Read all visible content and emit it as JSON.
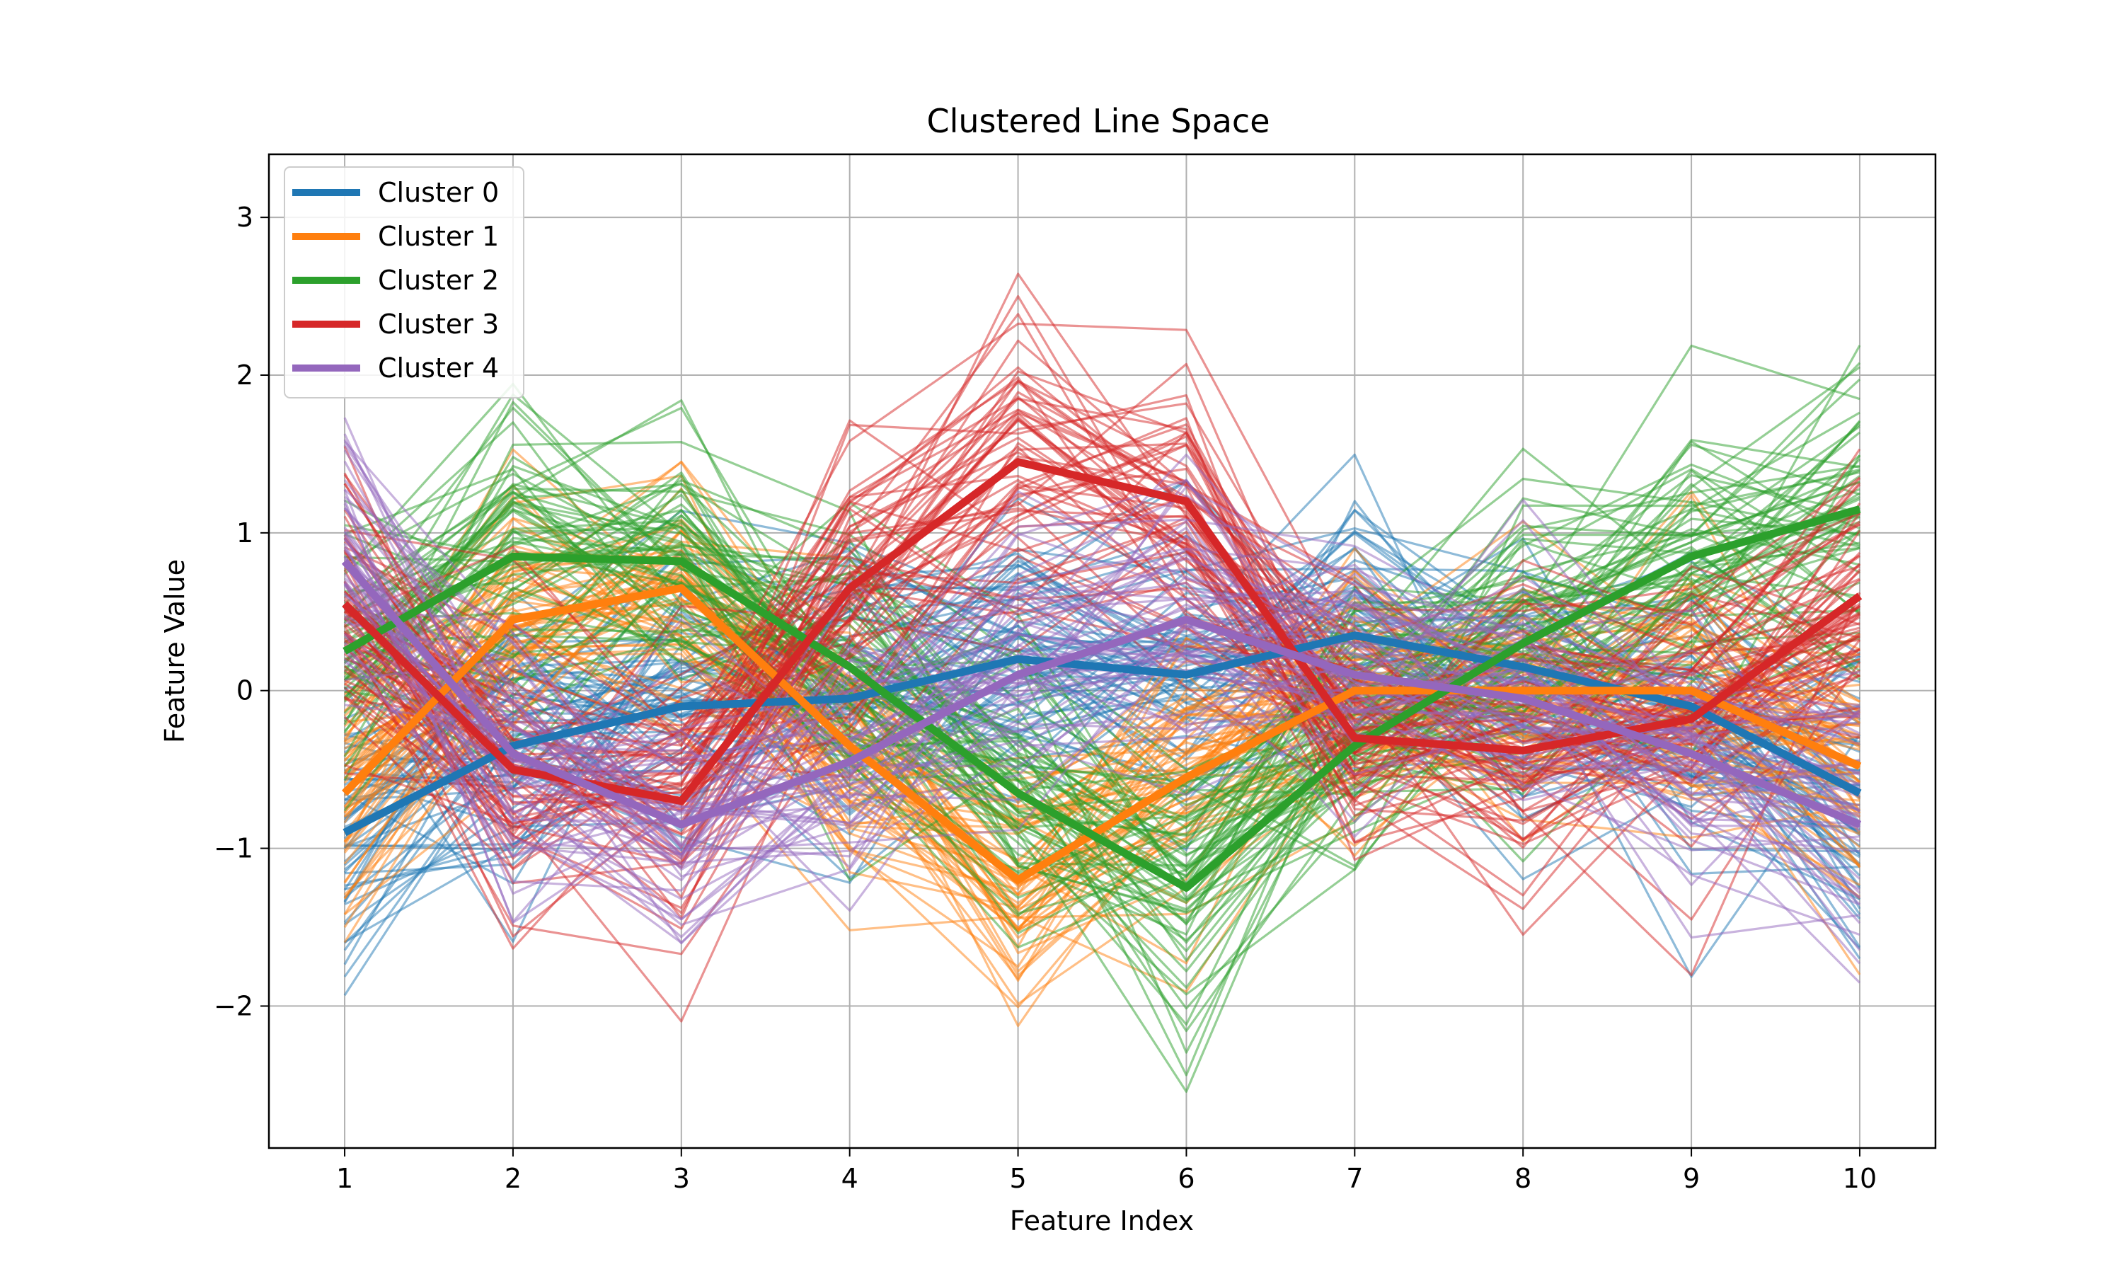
{
  "chart_data": {
    "type": "line",
    "title": "Clustered Line Space",
    "xlabel": "Feature Index",
    "ylabel": "Feature Value",
    "x": [
      1,
      2,
      3,
      4,
      5,
      6,
      7,
      8,
      9,
      10
    ],
    "xlim": [
      0.55,
      10.45
    ],
    "ylim": [
      -2.9,
      3.4
    ],
    "xticks": [
      "1",
      "2",
      "3",
      "4",
      "5",
      "6",
      "7",
      "8",
      "9",
      "10"
    ],
    "yticks": [
      {
        "value": 3,
        "label": "3"
      },
      {
        "value": 2,
        "label": "2"
      },
      {
        "value": 1,
        "label": "1"
      },
      {
        "value": 0,
        "label": "0"
      },
      {
        "value": -1,
        "label": "−1"
      },
      {
        "value": -2,
        "label": "−2"
      }
    ],
    "grid": true,
    "legend": "upper-left",
    "series": [
      {
        "name": "Cluster 0",
        "color": "#1f77b4",
        "centroid": [
          -0.9,
          -0.35,
          -0.1,
          -0.05,
          0.2,
          0.1,
          0.35,
          0.15,
          -0.1,
          -0.65
        ],
        "spread": 0.45,
        "samples": 60
      },
      {
        "name": "Cluster 1",
        "color": "#ff7f0e",
        "centroid": [
          -0.65,
          0.45,
          0.65,
          -0.35,
          -1.2,
          -0.55,
          0.0,
          0.0,
          0.0,
          -0.48
        ],
        "spread": 0.42,
        "samples": 60
      },
      {
        "name": "Cluster 2",
        "color": "#2ca02c",
        "centroid": [
          0.25,
          0.85,
          0.82,
          0.15,
          -0.65,
          -1.25,
          -0.35,
          0.3,
          0.85,
          1.15
        ],
        "spread": 0.45,
        "samples": 60
      },
      {
        "name": "Cluster 3",
        "color": "#d62728",
        "centroid": [
          0.55,
          -0.5,
          -0.7,
          0.65,
          1.45,
          1.2,
          -0.3,
          -0.38,
          -0.18,
          0.6
        ],
        "spread": 0.42,
        "samples": 60
      },
      {
        "name": "Cluster 4",
        "color": "#9467bd",
        "centroid": [
          0.82,
          -0.4,
          -0.85,
          -0.45,
          0.1,
          0.45,
          0.1,
          -0.05,
          -0.4,
          -0.85
        ],
        "spread": 0.4,
        "samples": 50
      }
    ]
  }
}
